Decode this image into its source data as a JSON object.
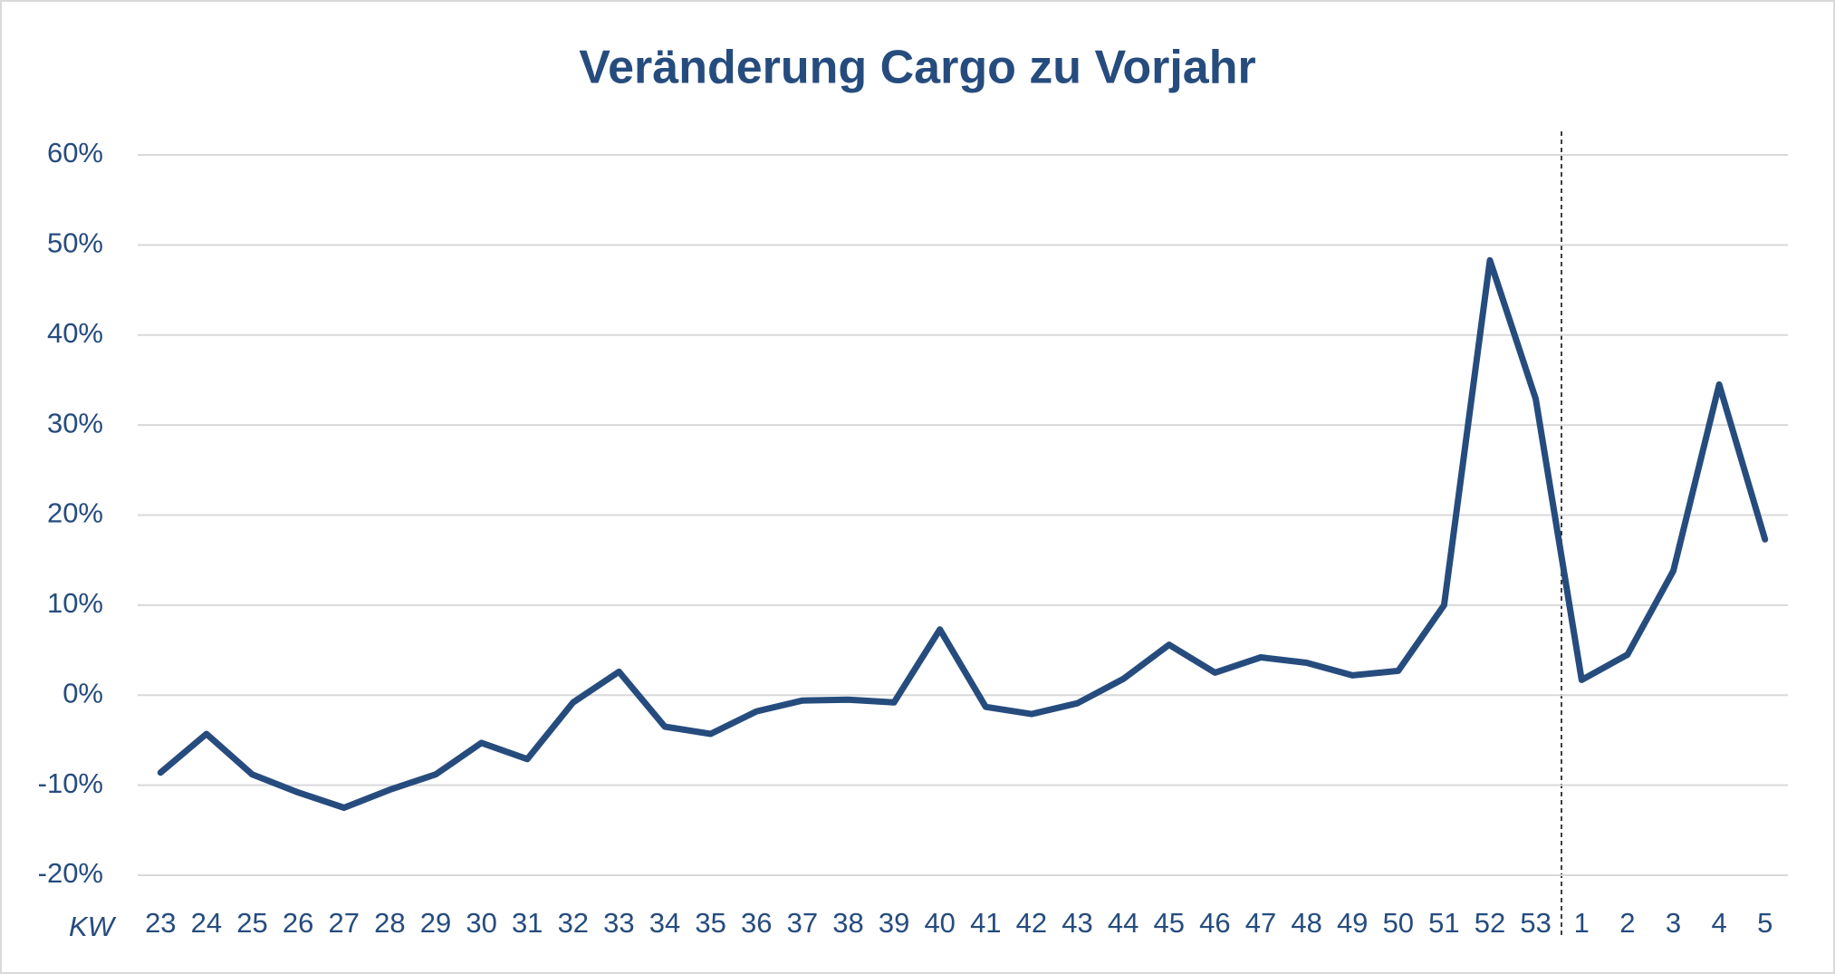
{
  "chart_data": {
    "type": "line",
    "title": "Veränderung Cargo zu Vorjahr",
    "x_label": "KW",
    "categories": [
      "23",
      "24",
      "25",
      "26",
      "27",
      "28",
      "29",
      "30",
      "31",
      "32",
      "33",
      "34",
      "35",
      "36",
      "37",
      "38",
      "39",
      "40",
      "41",
      "42",
      "43",
      "44",
      "45",
      "46",
      "47",
      "48",
      "49",
      "50",
      "51",
      "52",
      "53",
      "1",
      "2",
      "3",
      "4",
      "5"
    ],
    "series": [
      {
        "color": "#264c7e",
        "values": [
          -8.6,
          -4.3,
          -8.8,
          -10.8,
          -12.5,
          -10.5,
          -8.8,
          -5.3,
          -7.1,
          -0.8,
          2.6,
          -3.5,
          -4.3,
          -1.8,
          -0.6,
          -0.5,
          -0.8,
          7.3,
          -1.3,
          -2.1,
          -0.9,
          1.8,
          5.6,
          2.5,
          4.2,
          3.6,
          2.2,
          2.7,
          10.0,
          48.3,
          32.9,
          1.7,
          4.5,
          13.8,
          34.5,
          17.3
        ]
      }
    ],
    "ylim": [
      -20,
      60
    ],
    "yticks": [
      {
        "value": -20,
        "label": "-20%"
      },
      {
        "value": -10,
        "label": "-10%"
      },
      {
        "value": 0,
        "label": "0%"
      },
      {
        "value": 10,
        "label": "10%"
      },
      {
        "value": 20,
        "label": "20%"
      },
      {
        "value": 30,
        "label": "30%"
      },
      {
        "value": 40,
        "label": "40%"
      },
      {
        "value": 50,
        "label": "50%"
      },
      {
        "value": 60,
        "label": "60%"
      }
    ],
    "grid": true
  }
}
